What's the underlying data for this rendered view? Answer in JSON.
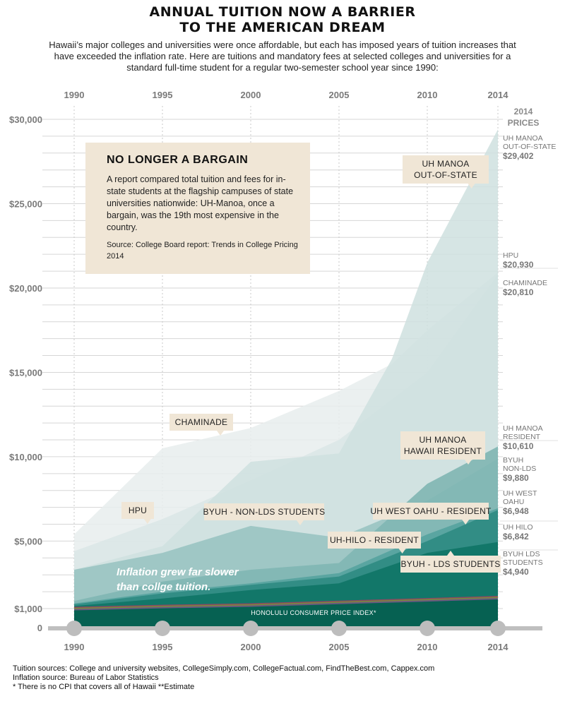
{
  "header": {
    "title_line1": "ANNUAL TUITION NOW A BARRIER",
    "title_line2": "TO THE AMERICAN DREAM",
    "subtitle": "Hawaii’s major colleges and universities were once affordable, but each has imposed years of tuition increases that have exceeded the inflation rate. Here are tuitions and mandatory fees at selected colleges and universities for a standard full-time student for a regular two-semester school year since 1990:"
  },
  "callout": {
    "title": "NO LONGER A BARGAIN",
    "text": "A report compared total tuition and fees for in-state students at the flagship campuses of state universities nationwide: UH-Manoa, once a bargain, was the 19th most expensive in the country.",
    "source": "Source: College Board report: Trends in College Pricing 2014"
  },
  "footer": {
    "line1": "Tuition sources: College and university websites, CollegeSimply.com, CollegeFactual.com, FindTheBest.com, Cappex.com",
    "line2": "Inflation source: Bureau of Labor Statistics",
    "line3": "* There is no CPI that covers all of Hawaii  **Estimate"
  },
  "chart_data": {
    "type": "area",
    "x_ticks": [
      "1990",
      "1995",
      "2000",
      "2005",
      "2010",
      "2014"
    ],
    "y_ticks": [
      {
        "label": "$30,000",
        "value": 30000
      },
      {
        "label": "$25,000",
        "value": 25000
      },
      {
        "label": "$20,000",
        "value": 20000
      },
      {
        "label": "$15,000",
        "value": 15000
      },
      {
        "label": "$10,000",
        "value": 10000
      },
      {
        "label": "$5,000",
        "value": 5000
      },
      {
        "label": "$1,000",
        "value": 1000
      },
      {
        "label": "0",
        "value": 0
      }
    ],
    "xlim": [
      1990,
      2014
    ],
    "ylim": [
      0,
      30000
    ],
    "grid": true,
    "prices_header": [
      "2014",
      "PRICES"
    ],
    "series": [
      {
        "name": "HPU",
        "color": "#e7eded",
        "x": [
          1990,
          1995,
          2000,
          2005,
          2008,
          2010,
          2014
        ],
        "y": [
          5400,
          10500,
          11700,
          13900,
          15500,
          17500,
          20930
        ],
        "label": "HPU"
      },
      {
        "name": "CHAMINADE",
        "color": "#dbe6e6",
        "x": [
          1990,
          1995,
          2000,
          2005,
          2010,
          2014
        ],
        "y": [
          4400,
          6300,
          8600,
          11000,
          15000,
          20810
        ],
        "label": "CHAMINADE"
      },
      {
        "name": "UH MANOA OUT-OF-STATE",
        "color": "#cfe0df",
        "x": [
          1990,
          1995,
          2000,
          2005,
          2008,
          2010,
          2014
        ],
        "y": [
          3300,
          4700,
          9700,
          10200,
          15800,
          21500,
          29402
        ],
        "label": "UH MANOA OUT-OF-STATE"
      },
      {
        "name": "BYUH NON-LDS",
        "color": "#99c4c2",
        "x": [
          1990,
          1995,
          2000,
          2005,
          2010,
          2014
        ],
        "y": [
          3300,
          4300,
          5900,
          5200,
          7400,
          9880
        ],
        "label": "BYUH - NON-LDS STUDENTS"
      },
      {
        "name": "UH MANOA HAWAII RESIDENT",
        "color": "#7fb6b3",
        "x": [
          1990,
          1995,
          2000,
          2005,
          2010,
          2014
        ],
        "y": [
          1450,
          2600,
          3300,
          3700,
          8400,
          10610
        ],
        "label": "UH MANOA HAWAII RESIDENT"
      },
      {
        "name": "UH WEST OAHU - RESIDENT",
        "color": "#55a39e",
        "x": [
          1990,
          1995,
          2000,
          2005,
          2010,
          2014
        ],
        "y": [
          1300,
          2000,
          2500,
          3100,
          5400,
          6948
        ],
        "label": "UH WEST OAHU - RESIDENT"
      },
      {
        "name": "UH-HILO - RESIDENT",
        "color": "#2e8b82",
        "x": [
          1990,
          1995,
          2000,
          2005,
          2010,
          2014
        ],
        "y": [
          1250,
          1900,
          2400,
          2900,
          5000,
          6842
        ],
        "label": "UH-HILO - RESIDENT"
      },
      {
        "name": "BYUH - LDS STUDENTS",
        "color": "#0e7466",
        "x": [
          1990,
          1995,
          2000,
          2005,
          2010,
          2014
        ],
        "y": [
          1150,
          1600,
          2100,
          2500,
          4300,
          4940
        ],
        "label": "BYUH - LDS STUDENTS"
      },
      {
        "name": "HONOLULU CONSUMER PRICE INDEX*",
        "color": "#065e50",
        "x": [
          1990,
          1995,
          2000,
          2005,
          2010,
          2014
        ],
        "y": [
          1000,
          1120,
          1210,
          1370,
          1520,
          1650
        ],
        "label": "HONOLULU CONSUMER PRICE INDEX*"
      }
    ],
    "right_labels": [
      {
        "lines": [
          "UH MANOA",
          "OUT-OF-STATE"
        ],
        "value": "$29,402"
      },
      {
        "lines": [
          "HPU"
        ],
        "value": "$20,930"
      },
      {
        "lines": [
          "CHAMINADE"
        ],
        "value": "$20,810"
      },
      {
        "lines": [
          "UH MANOA",
          "RESIDENT"
        ],
        "value": "$10,610"
      },
      {
        "lines": [
          "BYUH",
          "NON-LDS"
        ],
        "value": "$9,880"
      },
      {
        "lines": [
          "UH WEST",
          "OAHU"
        ],
        "value": "$6,948"
      },
      {
        "lines": [
          "UH HILO"
        ],
        "value": "$6,842"
      },
      {
        "lines": [
          "BYUH LDS",
          "STUDENTS"
        ],
        "value": "$4,940"
      }
    ],
    "annotations": {
      "inflation_note": [
        "Inflation grew far slower",
        "than collge tuition."
      ]
    }
  }
}
